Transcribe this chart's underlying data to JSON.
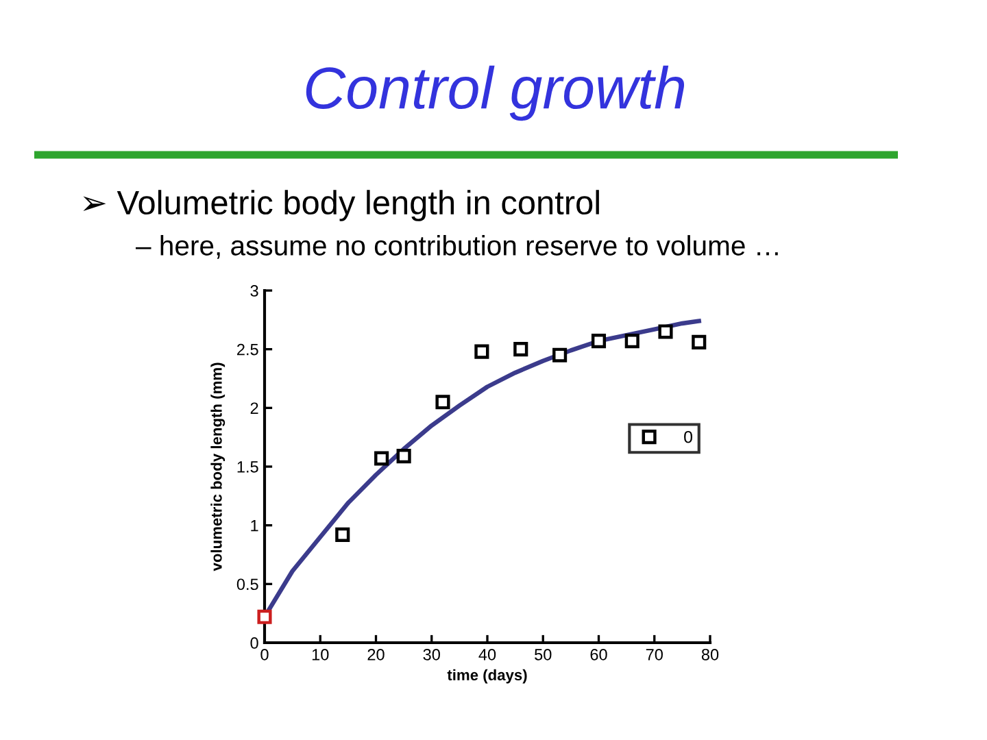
{
  "chart_data": {
    "type": "scatter",
    "title": "Control growth",
    "subtitle": "➢ Volumetric body length in control",
    "annotations": [
      "– here, assume no contribution reserve to volume …"
    ],
    "xlabel": "time (days)",
    "ylabel": "volumetric body length (mm)",
    "series": [
      {
        "name": "0",
        "marker": "square",
        "color": "#000000",
        "x": [
          14,
          21,
          25,
          32,
          39,
          46,
          53,
          60,
          66,
          72,
          78
        ],
        "values": [
          0.92,
          1.57,
          1.59,
          2.05,
          2.48,
          2.5,
          2.45,
          2.57,
          2.57,
          2.65,
          2.56
        ]
      },
      {
        "marker": "square",
        "color": "#cc1f1f",
        "x": [
          0
        ],
        "values": [
          0.22
        ]
      },
      {
        "type": "line",
        "marker": "none",
        "line_style": "solid",
        "color": "#3b3b8c",
        "x": [
          0,
          5,
          10,
          15,
          20,
          25,
          30,
          35,
          40,
          45,
          50,
          55,
          60,
          65,
          70,
          75,
          78
        ],
        "values": [
          0.22,
          0.61,
          0.9,
          1.19,
          1.43,
          1.65,
          1.85,
          2.02,
          2.18,
          2.3,
          2.4,
          2.49,
          2.57,
          2.62,
          2.67,
          2.72,
          2.74
        ]
      }
    ],
    "xlim": [
      0,
      80
    ],
    "ylim": [
      0,
      3
    ],
    "xticks": [
      0,
      10,
      20,
      30,
      40,
      50,
      60,
      70,
      80
    ],
    "yticks": [
      0,
      0.5,
      1,
      1.5,
      2,
      2.5,
      3
    ],
    "legend": "right"
  }
}
